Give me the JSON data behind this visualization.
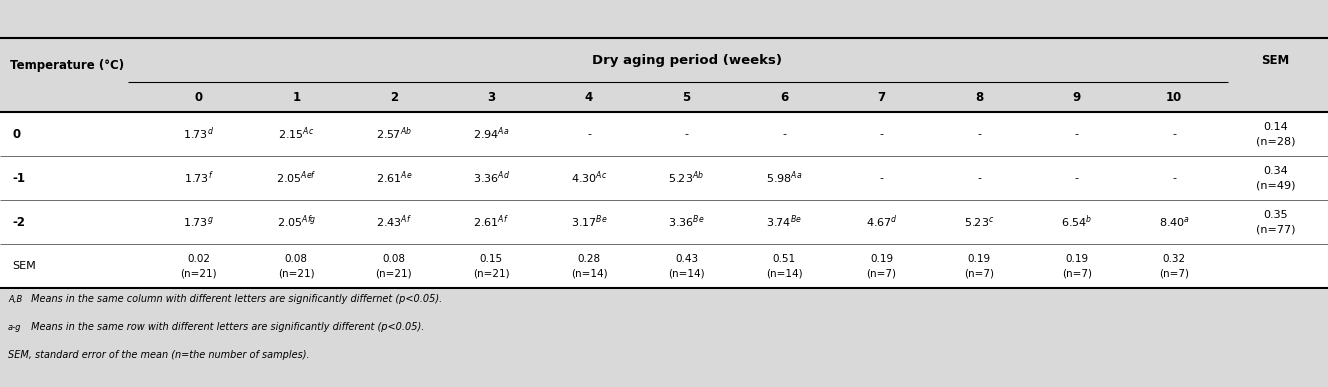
{
  "title": "Dry aging period (weeks)",
  "col_header_label": "Temperature (°C)",
  "sem_label": "SEM",
  "col_weeks": [
    "0",
    "1",
    "2",
    "3",
    "4",
    "5",
    "6",
    "7",
    "8",
    "9",
    "10"
  ],
  "rows": [
    {
      "temp": "0",
      "values": [
        "1.73$^{d}$",
        "2.15$^{Ac}$",
        "2.57$^{Ab}$",
        "2.94$^{Aa}$",
        "-",
        "-",
        "-",
        "-",
        "-",
        "-",
        "-"
      ],
      "sem": [
        "0.14",
        "(n=28)"
      ]
    },
    {
      "temp": "-1",
      "values": [
        "1.73$^{f}$",
        "2.05$^{Aef}$",
        "2.61$^{Ae}$",
        "3.36$^{Ad}$",
        "4.30$^{Ac}$",
        "5.23$^{Ab}$",
        "5.98$^{Aa}$",
        "-",
        "-",
        "-",
        "-"
      ],
      "sem": [
        "0.34",
        "(n=49)"
      ]
    },
    {
      "temp": "-2",
      "values": [
        "1.73$^{g}$",
        "2.05$^{Afg}$",
        "2.43$^{Af}$",
        "2.61$^{Af}$",
        "3.17$^{Be}$",
        "3.36$^{Be}$",
        "3.74$^{Be}$",
        "4.67$^{d}$",
        "5.23$^{c}$",
        "6.54$^{b}$",
        "8.40$^{a}$"
      ],
      "sem": [
        "0.35",
        "(n=77)"
      ]
    },
    {
      "temp": "SEM",
      "values": [
        "0.02|(n=21)",
        "0.08|(n=21)",
        "0.08|(n=21)",
        "0.15|(n=21)",
        "0.28|(n=14)",
        "0.43|(n=14)",
        "0.51|(n=14)",
        "0.19|(n=7)",
        "0.19|(n=7)",
        "0.19|(n=7)",
        "0.32|(n=7)"
      ],
      "sem": []
    }
  ],
  "footnotes": [
    [
      "A,B",
      " Means in the same column with different letters are significantly differnet (p<0.05)."
    ],
    [
      "a-g",
      " Means in the same row with different letters are significantly different (p<0.05)."
    ],
    [
      "",
      "SEM, standard error of the mean (n=the number of samples)."
    ]
  ],
  "header_bg": "#d9d9d9",
  "body_bg": "#ffffff",
  "font_size": 8.0,
  "header_font_size": 8.5,
  "title_font_size": 9.5
}
